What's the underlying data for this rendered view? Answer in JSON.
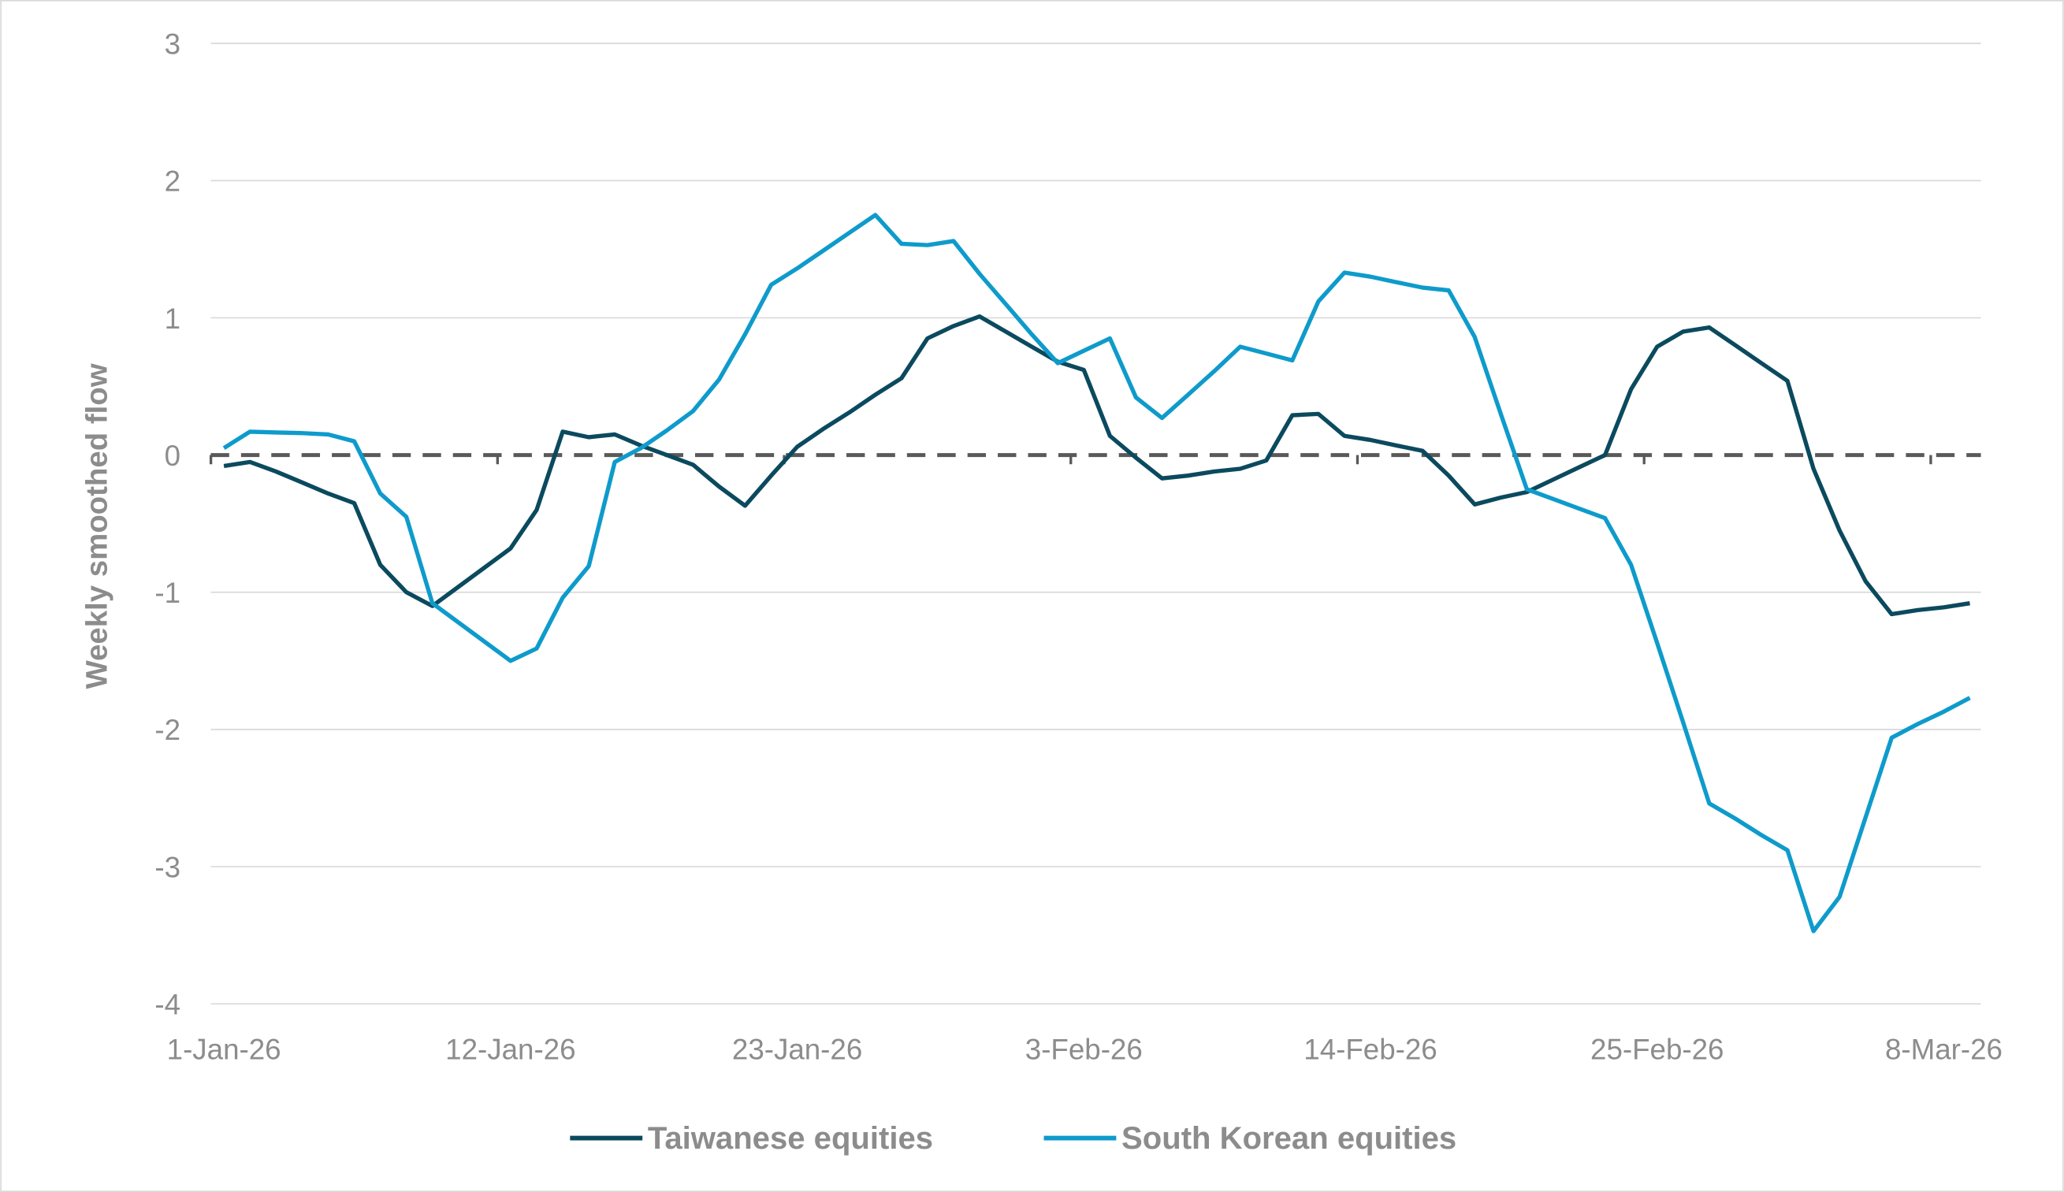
{
  "chart_data": {
    "type": "line",
    "title": "",
    "xlabel": "",
    "ylabel": "Weekly smoothed flow",
    "ylim": [
      -4,
      3
    ],
    "yticks": [
      "3",
      "2",
      "1",
      "0",
      "-1",
      "-2",
      "-3",
      "-4"
    ],
    "xtick_labels": [
      "1-Jan-26",
      "12-Jan-26",
      "23-Jan-26",
      "3-Feb-26",
      "14-Feb-26",
      "25-Feb-26",
      "8-Mar-26"
    ],
    "grid": "horizontal",
    "zero_line": "dashed",
    "legend": "bottom",
    "x": [
      "1-Jan-26",
      "2-Jan-26",
      "3-Jan-26",
      "4-Jan-26",
      "5-Jan-26",
      "6-Jan-26",
      "7-Jan-26",
      "8-Jan-26",
      "9-Jan-26",
      "10-Jan-26",
      "11-Jan-26",
      "12-Jan-26",
      "13-Jan-26",
      "14-Jan-26",
      "15-Jan-26",
      "16-Jan-26",
      "17-Jan-26",
      "18-Jan-26",
      "19-Jan-26",
      "20-Jan-26",
      "21-Jan-26",
      "22-Jan-26",
      "23-Jan-26",
      "24-Jan-26",
      "25-Jan-26",
      "26-Jan-26",
      "27-Jan-26",
      "28-Jan-26",
      "29-Jan-26",
      "30-Jan-26",
      "31-Jan-26",
      "1-Feb-26",
      "2-Feb-26",
      "3-Feb-26",
      "4-Feb-26",
      "5-Feb-26",
      "6-Feb-26",
      "7-Feb-26",
      "8-Feb-26",
      "9-Feb-26",
      "10-Feb-26",
      "11-Feb-26",
      "12-Feb-26",
      "13-Feb-26",
      "14-Feb-26",
      "15-Feb-26",
      "16-Feb-26",
      "17-Feb-26",
      "18-Feb-26",
      "19-Feb-26",
      "20-Feb-26",
      "21-Feb-26",
      "22-Feb-26",
      "23-Feb-26",
      "24-Feb-26",
      "25-Feb-26",
      "26-Feb-26",
      "27-Feb-26",
      "28-Feb-26",
      "1-Mar-26",
      "2-Mar-26",
      "3-Mar-26",
      "4-Mar-26",
      "5-Mar-26",
      "6-Mar-26",
      "7-Mar-26",
      "8-Mar-26",
      "9-Mar-26"
    ],
    "series": [
      {
        "name": "Taiwanese equities",
        "color": "#0b4a5e",
        "values": [
          -0.08,
          -0.05,
          -0.12,
          -0.2,
          -0.28,
          -0.35,
          -0.8,
          -1.0,
          -1.1,
          -0.96,
          -0.82,
          -0.68,
          -0.4,
          0.17,
          0.13,
          0.15,
          0.07,
          0.0,
          -0.07,
          -0.23,
          -0.37,
          -0.15,
          0.06,
          0.19,
          0.31,
          0.44,
          0.56,
          0.85,
          0.94,
          1.01,
          0.9,
          0.79,
          0.68,
          0.62,
          0.14,
          -0.02,
          -0.17,
          -0.15,
          -0.12,
          -0.1,
          -0.04,
          0.29,
          0.3,
          0.14,
          0.11,
          0.07,
          0.03,
          -0.15,
          -0.36,
          -0.31,
          -0.27,
          -0.18,
          -0.09,
          0.0,
          0.48,
          0.79,
          0.9,
          0.93,
          0.8,
          0.67,
          0.54,
          -0.1,
          -0.55,
          -0.92,
          -1.16,
          -1.13,
          -1.11,
          -1.08
        ]
      },
      {
        "name": "South Korean equities",
        "color": "#0e9bcb",
        "values": [
          0.05,
          0.17,
          0.165,
          0.16,
          0.15,
          0.1,
          -0.28,
          -0.45,
          -1.08,
          -1.22,
          -1.36,
          -1.5,
          -1.41,
          -1.04,
          -0.81,
          -0.05,
          0.05,
          0.18,
          0.32,
          0.55,
          0.88,
          1.24,
          1.36,
          1.49,
          1.62,
          1.75,
          1.54,
          1.53,
          1.56,
          1.32,
          1.1,
          0.88,
          0.67,
          0.76,
          0.85,
          0.42,
          0.27,
          0.44,
          0.61,
          0.79,
          0.74,
          0.69,
          1.12,
          1.33,
          1.3,
          1.26,
          1.22,
          1.2,
          0.86,
          0.3,
          -0.25,
          -0.32,
          -0.39,
          -0.46,
          -0.8,
          -1.37,
          -1.95,
          -2.54,
          -2.65,
          -2.77,
          -2.88,
          -3.47,
          -3.22,
          -2.64,
          -2.06,
          -1.96,
          -1.87,
          -1.77
        ]
      }
    ]
  }
}
